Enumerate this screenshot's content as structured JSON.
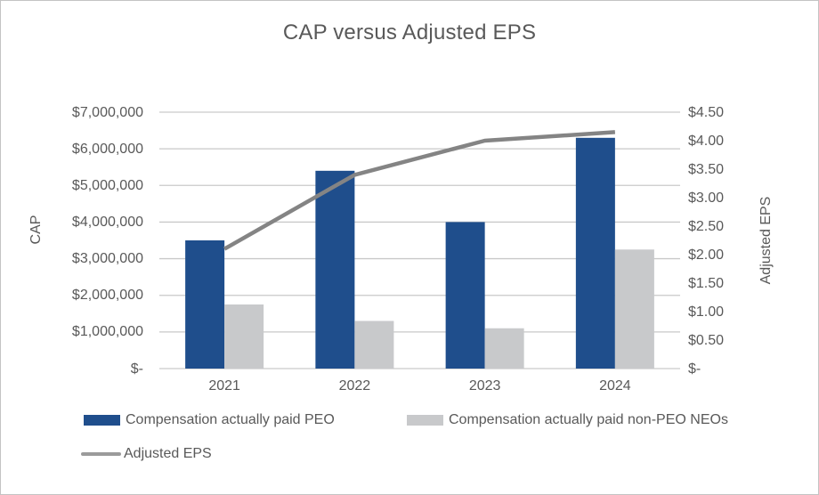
{
  "title": "CAP versus Adjusted EPS",
  "colors": {
    "bar_peo": "#1f4e8c",
    "bar_non_peo": "#c8c9cb",
    "line_eps": "#848484",
    "text": "#595959",
    "gridline": "#c9c9c9"
  },
  "chart_data": {
    "type": "bar+line combo (dual axis)",
    "title": "CAP versus Adjusted EPS",
    "categories": [
      "2021",
      "2022",
      "2023",
      "2024"
    ],
    "series": [
      {
        "name": "Compensation actually paid PEO",
        "type": "bar",
        "axis": "left",
        "color": "#1f4e8c",
        "values": [
          3500000,
          5400000,
          4000000,
          6300000
        ]
      },
      {
        "name": "Compensation actually paid non-PEO NEOs",
        "type": "bar",
        "axis": "left",
        "color": "#c8c9cb",
        "values": [
          1750000,
          1300000,
          1100000,
          3250000
        ]
      },
      {
        "name": "Adjusted EPS",
        "type": "line",
        "axis": "right",
        "color": "#848484",
        "values": [
          2.1,
          3.4,
          4.0,
          4.15
        ]
      }
    ],
    "left_axis": {
      "title": "CAP",
      "min": 0,
      "max": 7000000,
      "ticks": [
        "$7,000,000",
        "$6,000,000",
        "$5,000,000",
        "$4,000,000",
        "$3,000,000",
        "$2,000,000",
        "$1,000,000",
        "$-"
      ]
    },
    "right_axis": {
      "title": "Adjusted EPS",
      "min": 0,
      "max": 4.5,
      "ticks": [
        "$4.50",
        "$4.00",
        "$3.50",
        "$3.00",
        "$2.50",
        "$2.00",
        "$1.50",
        "$1.00",
        "$0.50",
        "$-"
      ]
    },
    "grid": true,
    "legend_position": "bottom-left"
  }
}
